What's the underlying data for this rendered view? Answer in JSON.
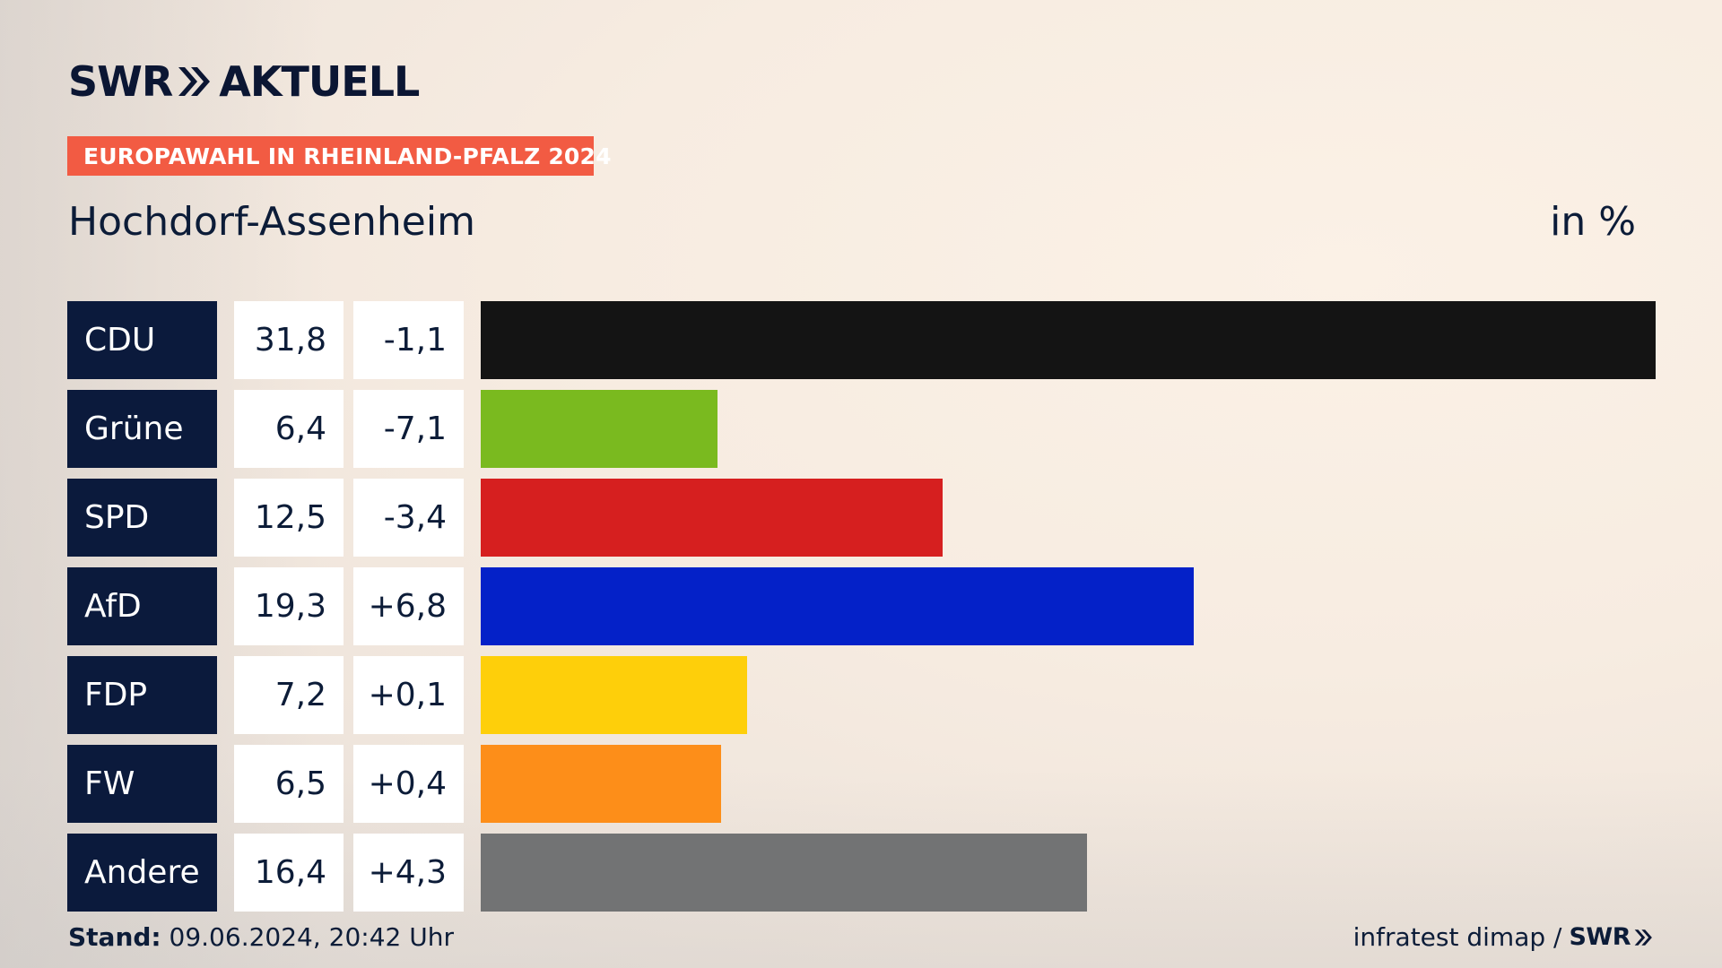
{
  "header": {
    "logo_left": "SWR",
    "logo_right": "AKTUELL",
    "badge": "EUROPAWAHL IN RHEINLAND-PFALZ 2024",
    "region": "Hochdorf-Assenheim",
    "unit": "in %"
  },
  "chart_data": {
    "type": "bar",
    "orientation": "horizontal",
    "categories": [
      "CDU",
      "Grüne",
      "SPD",
      "AfD",
      "FDP",
      "FW",
      "Andere"
    ],
    "values": [
      31.8,
      6.4,
      12.5,
      19.3,
      7.2,
      6.5,
      16.4
    ],
    "value_labels": [
      "31,8",
      "6,4",
      "12,5",
      "19,3",
      "7,2",
      "6,5",
      "16,4"
    ],
    "change_labels": [
      "-1,1",
      "-7,1",
      "-3,4",
      "+6,8",
      "+0,1",
      "+0,4",
      "+4,3"
    ],
    "changes": [
      -1.1,
      -7.1,
      -3.4,
      6.8,
      0.1,
      0.4,
      4.3
    ],
    "colors": [
      "#141414",
      "#7aba1f",
      "#d61f1f",
      "#0421c8",
      "#fecf0a",
      "#fd8e19",
      "#727374"
    ],
    "xlim": [
      0,
      31.8
    ],
    "title": "Hochdorf-Assenheim",
    "unit": "in %"
  },
  "footer": {
    "stand_label": "Stand:",
    "stand_value": "09.06.2024, 20:42 Uhr",
    "source": "infratest dimap /",
    "logo": "SWR"
  }
}
